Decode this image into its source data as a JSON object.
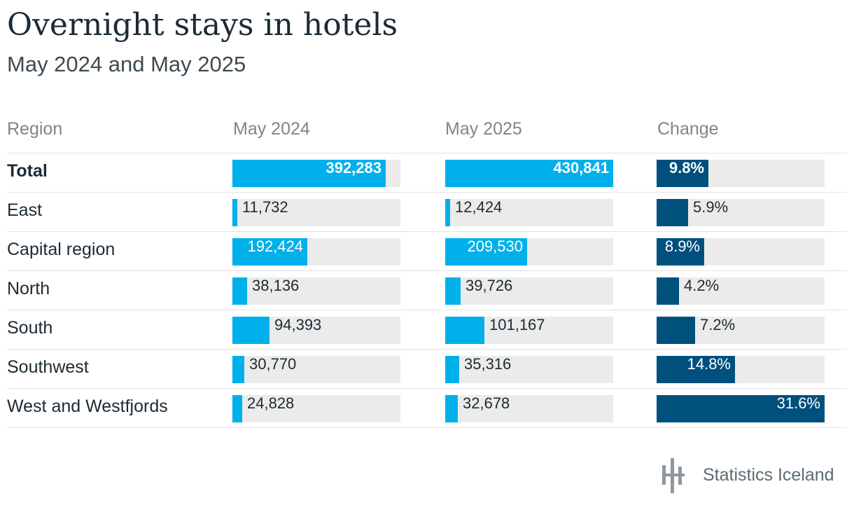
{
  "header": {
    "title": "Overnight stays in hotels",
    "subtitle": "May 2024 and May 2025"
  },
  "table": {
    "columns": [
      "Region",
      "May 2024",
      "May 2025",
      "Change"
    ]
  },
  "chart_data": {
    "type": "table",
    "title": "Overnight stays in hotels",
    "subtitle": "May 2024 and May 2025",
    "columns": [
      "Region",
      "May 2024",
      "May 2025",
      "Change"
    ],
    "rows": [
      {
        "region": "Total",
        "may2024": 392283,
        "may2025": 430841,
        "change": 9.8,
        "may2024_label": "392,283",
        "may2025_label": "430,841",
        "change_label": "9.8%",
        "bold": true
      },
      {
        "region": "East",
        "may2024": 11732,
        "may2025": 12424,
        "change": 5.9,
        "may2024_label": "11,732",
        "may2025_label": "12,424",
        "change_label": "5.9%"
      },
      {
        "region": "Capital region",
        "may2024": 192424,
        "may2025": 209530,
        "change": 8.9,
        "may2024_label": "192,424",
        "may2025_label": "209,530",
        "change_label": "8.9%"
      },
      {
        "region": "North",
        "may2024": 38136,
        "may2025": 39726,
        "change": 4.2,
        "may2024_label": "38,136",
        "may2025_label": "39,726",
        "change_label": "4.2%"
      },
      {
        "region": "South",
        "may2024": 94393,
        "may2025": 101167,
        "change": 7.2,
        "may2024_label": "94,393",
        "may2025_label": "101,167",
        "change_label": "7.2%"
      },
      {
        "region": "Southwest",
        "may2024": 30770,
        "may2025": 35316,
        "change": 14.8,
        "may2024_label": "30,770",
        "may2025_label": "35,316",
        "change_label": "14.8%"
      },
      {
        "region": "West and Westfjords",
        "may2024": 24828,
        "may2025": 32678,
        "change": 31.6,
        "may2024_label": "24,828",
        "may2025_label": "32,678",
        "change_label": "31.6%"
      }
    ],
    "colors": {
      "stays_bar": "#00b0ea",
      "change_bar": "#00507e",
      "track": "#ebebeb"
    }
  },
  "footer": {
    "brand": "Statistics Iceland",
    "logo_icon": "statistics-iceland-logo-icon"
  }
}
